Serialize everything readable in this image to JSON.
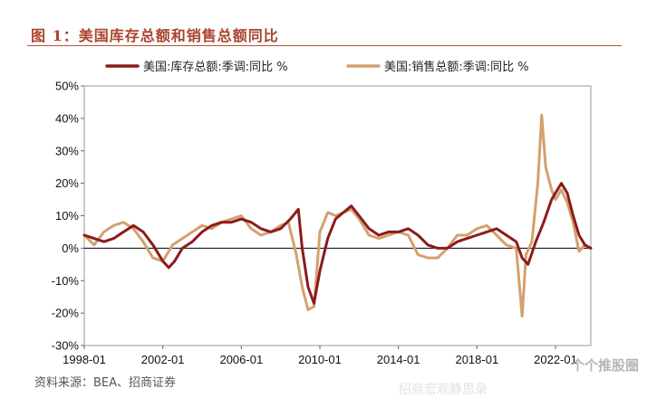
{
  "figure_title": "图 1：美国库存总额和销售总额同比",
  "source_text": "资料来源：BEA、招商证券",
  "watermark": "个个推股圈",
  "bottom_mark": "招商宏观静思录",
  "chart_data": {
    "type": "line",
    "title": "",
    "xlabel": "",
    "ylabel": "",
    "x_ticks": [
      "1998-01",
      "2002-01",
      "2006-01",
      "2010-01",
      "2014-01",
      "2018-01",
      "2022-01"
    ],
    "y_ticks": [
      "50%",
      "40%",
      "30%",
      "20%",
      "10%",
      "0%",
      "-10%",
      "-20%",
      "-30%"
    ],
    "ylim": [
      -30,
      50
    ],
    "xlim": [
      1998.0,
      2023.8
    ],
    "grid": false,
    "legend_position": "top",
    "series": [
      {
        "name": "美国:库存总额:季调:同比 %",
        "color": "#8b1c1c",
        "points": [
          [
            1998.0,
            4
          ],
          [
            1998.5,
            3
          ],
          [
            1999.0,
            2
          ],
          [
            1999.5,
            3
          ],
          [
            2000.0,
            5
          ],
          [
            2000.5,
            7
          ],
          [
            2001.0,
            5
          ],
          [
            2001.5,
            1
          ],
          [
            2002.0,
            -4
          ],
          [
            2002.3,
            -6
          ],
          [
            2002.6,
            -4
          ],
          [
            2003.0,
            0
          ],
          [
            2003.5,
            2
          ],
          [
            2004.0,
            5
          ],
          [
            2004.5,
            7
          ],
          [
            2005.0,
            8
          ],
          [
            2005.5,
            8
          ],
          [
            2006.0,
            9
          ],
          [
            2006.5,
            8
          ],
          [
            2007.0,
            6
          ],
          [
            2007.5,
            5
          ],
          [
            2008.0,
            6
          ],
          [
            2008.5,
            9
          ],
          [
            2008.9,
            12
          ],
          [
            2009.1,
            0
          ],
          [
            2009.4,
            -12
          ],
          [
            2009.7,
            -17
          ],
          [
            2010.0,
            -7
          ],
          [
            2010.4,
            3
          ],
          [
            2010.8,
            9
          ],
          [
            2011.2,
            11
          ],
          [
            2011.6,
            13
          ],
          [
            2012.0,
            10
          ],
          [
            2012.5,
            6
          ],
          [
            2013.0,
            4
          ],
          [
            2013.5,
            5
          ],
          [
            2014.0,
            5
          ],
          [
            2014.5,
            6
          ],
          [
            2015.0,
            4
          ],
          [
            2015.5,
            1
          ],
          [
            2016.0,
            0
          ],
          [
            2016.5,
            0
          ],
          [
            2017.0,
            2
          ],
          [
            2017.5,
            3
          ],
          [
            2018.0,
            4
          ],
          [
            2018.5,
            5
          ],
          [
            2019.0,
            6
          ],
          [
            2019.5,
            4
          ],
          [
            2020.0,
            2
          ],
          [
            2020.3,
            -3
          ],
          [
            2020.6,
            -5
          ],
          [
            2021.0,
            2
          ],
          [
            2021.4,
            8
          ],
          [
            2021.8,
            15
          ],
          [
            2022.0,
            17
          ],
          [
            2022.3,
            20
          ],
          [
            2022.6,
            17
          ],
          [
            2022.9,
            10
          ],
          [
            2023.2,
            4
          ],
          [
            2023.5,
            1
          ],
          [
            2023.8,
            0
          ]
        ]
      },
      {
        "name": "美国:销售总额:季调:同比 %",
        "color": "#d4a070",
        "points": [
          [
            1998.0,
            4
          ],
          [
            1998.5,
            1
          ],
          [
            1999.0,
            5
          ],
          [
            1999.5,
            7
          ],
          [
            2000.0,
            8
          ],
          [
            2000.5,
            6
          ],
          [
            2001.0,
            2
          ],
          [
            2001.5,
            -3
          ],
          [
            2002.0,
            -4
          ],
          [
            2002.5,
            1
          ],
          [
            2003.0,
            3
          ],
          [
            2003.5,
            5
          ],
          [
            2004.0,
            7
          ],
          [
            2004.5,
            6
          ],
          [
            2005.0,
            8
          ],
          [
            2005.5,
            9
          ],
          [
            2006.0,
            10
          ],
          [
            2006.5,
            6
          ],
          [
            2007.0,
            4
          ],
          [
            2007.5,
            5
          ],
          [
            2008.0,
            7
          ],
          [
            2008.4,
            8
          ],
          [
            2008.8,
            -2
          ],
          [
            2009.1,
            -12
          ],
          [
            2009.4,
            -19
          ],
          [
            2009.7,
            -18
          ],
          [
            2010.0,
            5
          ],
          [
            2010.4,
            11
          ],
          [
            2010.8,
            10
          ],
          [
            2011.2,
            11
          ],
          [
            2011.6,
            12
          ],
          [
            2012.0,
            9
          ],
          [
            2012.5,
            4
          ],
          [
            2013.0,
            3
          ],
          [
            2013.5,
            4
          ],
          [
            2014.0,
            5
          ],
          [
            2014.5,
            4
          ],
          [
            2015.0,
            -2
          ],
          [
            2015.5,
            -3
          ],
          [
            2016.0,
            -3
          ],
          [
            2016.5,
            0
          ],
          [
            2017.0,
            4
          ],
          [
            2017.5,
            4
          ],
          [
            2018.0,
            6
          ],
          [
            2018.5,
            7
          ],
          [
            2019.0,
            4
          ],
          [
            2019.5,
            1
          ],
          [
            2020.0,
            0
          ],
          [
            2020.3,
            -21
          ],
          [
            2020.5,
            -2
          ],
          [
            2020.8,
            2
          ],
          [
            2021.1,
            20
          ],
          [
            2021.3,
            41
          ],
          [
            2021.5,
            25
          ],
          [
            2021.8,
            18
          ],
          [
            2022.0,
            15
          ],
          [
            2022.3,
            18
          ],
          [
            2022.6,
            14
          ],
          [
            2022.9,
            8
          ],
          [
            2023.2,
            -1
          ],
          [
            2023.5,
            1
          ],
          [
            2023.8,
            0
          ]
        ]
      }
    ]
  }
}
